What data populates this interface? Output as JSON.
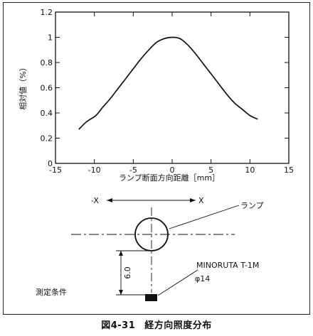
{
  "figure": {
    "number": "図4-31",
    "caption": "経方向照度分布"
  },
  "chart_data": {
    "type": "line",
    "ylabel": "相対値（%）",
    "xlabel": "ランプ断面方向距離［mm］",
    "xlim": [
      -15,
      15
    ],
    "ylim": [
      0,
      1.2
    ],
    "xticks": [
      -15,
      -10,
      -5,
      0,
      5,
      10,
      15
    ],
    "yticks": [
      0,
      0.2,
      0.4,
      0.6,
      0.8,
      1,
      1.2
    ],
    "xticklabels": [
      "-15",
      "-10",
      "-5",
      "0",
      "5",
      "10",
      "15"
    ],
    "yticklabels": [
      "0",
      "0.2",
      "0.4",
      "0.6",
      "0.8",
      "1",
      "1.2"
    ],
    "grid": false,
    "series": [
      {
        "x": [
          -12,
          -11,
          -10,
          -9.5,
          -9,
          -8,
          -7,
          -6,
          -5,
          -4,
          -3,
          -2,
          -1,
          0,
          1,
          2,
          3,
          4,
          5,
          6,
          7,
          8,
          9,
          10,
          11
        ],
        "y": [
          0.27,
          0.33,
          0.37,
          0.4,
          0.44,
          0.51,
          0.59,
          0.67,
          0.75,
          0.83,
          0.9,
          0.96,
          0.99,
          1.0,
          0.99,
          0.94,
          0.87,
          0.79,
          0.71,
          0.63,
          0.55,
          0.48,
          0.43,
          0.38,
          0.35
        ]
      }
    ]
  },
  "diagram": {
    "minus_x_label": "-X",
    "plus_x_label": "X",
    "lamp_label": "ランプ",
    "sensor_label": "MINORUTA T-1M",
    "sensor_diameter": "φ14",
    "distance_label": "6.0",
    "condition_label": "測定条件"
  }
}
